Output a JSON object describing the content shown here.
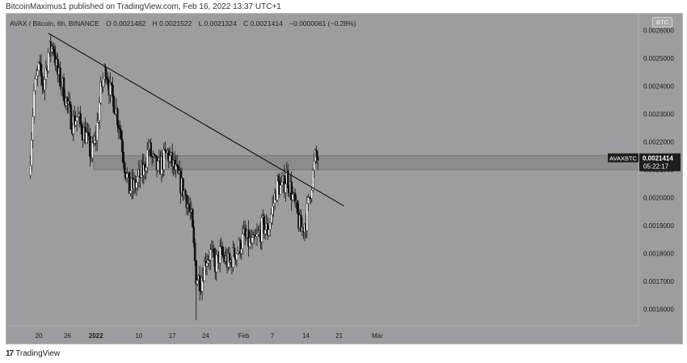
{
  "caption": "BitcoinMaximus1 published on TradingView.com, Feb 16, 2022 13:37 UTC+1",
  "legend": {
    "symbol": "AVAX / Bitcoin, 6h, BINANCE",
    "o_label": "O",
    "o": "0.0021482",
    "h_label": "H",
    "h": "0.0021522",
    "l_label": "L",
    "l": "0.0021324",
    "c_label": "C",
    "c": "0.0021414",
    "change": "−0.0000061 (−0.28%)"
  },
  "currency_badge": "BTC",
  "price_tag": {
    "symbol": "AVAXBTC",
    "price": "0.0021414",
    "countdown": "05:22:17"
  },
  "footer": {
    "logo": "17",
    "brand": "TradingView"
  },
  "colors": {
    "background": "#9b9da0",
    "up": "#ffffff",
    "down": "#111111",
    "line": "#111111",
    "zone": "#8a8c90"
  },
  "chart_data": {
    "type": "candlestick",
    "interval": "6h",
    "x_ticks": [
      "20",
      "26",
      "2022",
      "10",
      "17",
      "24",
      "Feb",
      "7",
      "14",
      "21",
      "Mar"
    ],
    "x_tick_dates": [
      "2021-12-20",
      "2021-12-26",
      "2022-01-01",
      "2022-01-10",
      "2022-01-17",
      "2022-01-24",
      "2022-02-01",
      "2022-02-07",
      "2022-02-14",
      "2022-02-21",
      "2022-03-01"
    ],
    "y_ticks": [
      "0.0026000",
      "0.0025000",
      "0.0024000",
      "0.0023000",
      "0.0022000",
      "0.0021000",
      "0.0020000",
      "0.0019000",
      "0.0018000",
      "0.0017000",
      "0.0016000"
    ],
    "ylim": [
      0.00154,
      0.00266
    ],
    "close_path": [
      [
        "2021-12-18",
        0.00208
      ],
      [
        "2021-12-19",
        0.00238
      ],
      [
        "2021-12-20",
        0.00246
      ],
      [
        "2021-12-21",
        0.0024
      ],
      [
        "2021-12-22",
        0.00252
      ],
      [
        "2021-12-23",
        0.00255
      ],
      [
        "2021-12-24",
        0.00244
      ],
      [
        "2021-12-25",
        0.0024
      ],
      [
        "2021-12-26",
        0.00233
      ],
      [
        "2021-12-27",
        0.00227
      ],
      [
        "2021-12-28",
        0.00229
      ],
      [
        "2021-12-29",
        0.00225
      ],
      [
        "2021-12-30",
        0.00222
      ],
      [
        "2021-12-31",
        0.00215
      ],
      [
        "2022-01-01",
        0.00222
      ],
      [
        "2022-01-02",
        0.00238
      ],
      [
        "2022-01-03",
        0.00247
      ],
      [
        "2022-01-04",
        0.00238
      ],
      [
        "2022-01-05",
        0.00233
      ],
      [
        "2022-01-06",
        0.00225
      ],
      [
        "2022-01-07",
        0.00212
      ],
      [
        "2022-01-08",
        0.00203
      ],
      [
        "2022-01-09",
        0.00204
      ],
      [
        "2022-01-10",
        0.00207
      ],
      [
        "2022-01-11",
        0.0021
      ],
      [
        "2022-01-12",
        0.00218
      ],
      [
        "2022-01-13",
        0.00213
      ],
      [
        "2022-01-14",
        0.0021
      ],
      [
        "2022-01-15",
        0.00213
      ],
      [
        "2022-01-16",
        0.00216
      ],
      [
        "2022-01-17",
        0.00212
      ],
      [
        "2022-01-18",
        0.00208
      ],
      [
        "2022-01-19",
        0.00204
      ],
      [
        "2022-01-20",
        0.002
      ],
      [
        "2022-01-21",
        0.00192
      ],
      [
        "2022-01-22",
        0.00172
      ],
      [
        "2022-01-23",
        0.0017
      ],
      [
        "2022-01-24",
        0.00178
      ],
      [
        "2022-01-25",
        0.0018
      ],
      [
        "2022-01-26",
        0.00176
      ],
      [
        "2022-01-27",
        0.0018
      ],
      [
        "2022-01-28",
        0.00178
      ],
      [
        "2022-01-29",
        0.00176
      ],
      [
        "2022-01-30",
        0.0018
      ],
      [
        "2022-01-31",
        0.00182
      ],
      [
        "2022-02-01",
        0.00186
      ],
      [
        "2022-02-02",
        0.00184
      ],
      [
        "2022-02-03",
        0.00183
      ],
      [
        "2022-02-04",
        0.00186
      ],
      [
        "2022-02-05",
        0.0019
      ],
      [
        "2022-02-06",
        0.00188
      ],
      [
        "2022-02-07",
        0.00196
      ],
      [
        "2022-02-08",
        0.00205
      ],
      [
        "2022-02-09",
        0.00203
      ],
      [
        "2022-02-10",
        0.00208
      ],
      [
        "2022-02-11",
        0.00202
      ],
      [
        "2022-02-12",
        0.00195
      ],
      [
        "2022-02-13",
        0.00188
      ],
      [
        "2022-02-14",
        0.00192
      ],
      [
        "2022-02-15",
        0.00203
      ],
      [
        "2022-02-16",
        0.0021414
      ]
    ],
    "lowest_wick": [
      "2022-01-22",
      0.00156
    ],
    "trendline": [
      [
        "2021-12-22",
        0.00259
      ],
      [
        "2022-02-22",
        0.00197
      ]
    ],
    "resistance_zone": [
      0.0021,
      0.00215
    ],
    "last_price": 0.0021414
  }
}
